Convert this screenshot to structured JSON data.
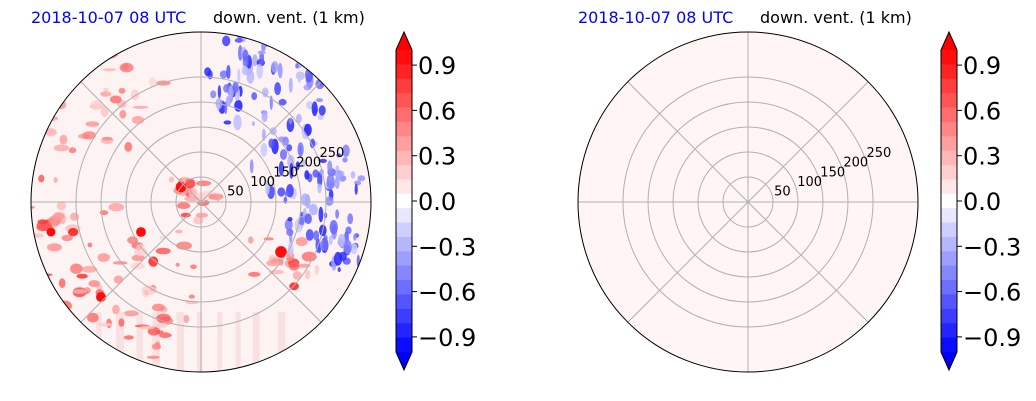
{
  "chart_data": [
    {
      "type": "heatmap",
      "projection": "polar",
      "title_date": "2018-10-07 08 UTC",
      "title": "down. vent. (1 km)",
      "radial_ticks": [
        50,
        100,
        150,
        200,
        250
      ],
      "rmax": 340,
      "angular_gridlines_deg": [
        0,
        45,
        90,
        135,
        180,
        225,
        270,
        315
      ],
      "field_description": "mixed positive (red) and negative (blue) values",
      "colorbar": {
        "ticks": [
          0.9,
          0.6,
          0.3,
          0.0,
          -0.3,
          -0.6,
          -0.9
        ],
        "tick_labels": [
          "0.9",
          "0.6",
          "0.3",
          "0.0",
          "−0.3",
          "−0.6",
          "−0.9"
        ],
        "range": [
          -1.0,
          1.0
        ],
        "extend": "both",
        "cmap": "bwr",
        "levels": 21
      }
    },
    {
      "type": "heatmap",
      "projection": "polar",
      "title_date": "2018-10-07 08 UTC",
      "title": "down. vent. (1 km)",
      "radial_ticks": [
        50,
        100,
        150,
        200,
        250
      ],
      "rmax": 340,
      "angular_gridlines_deg": [
        0,
        45,
        90,
        135,
        180,
        225,
        270,
        315
      ],
      "field_description": "uniform near-zero positive value",
      "uniform_value": 0.04,
      "colorbar": {
        "ticks": [
          0.9,
          0.6,
          0.3,
          0.0,
          -0.3,
          -0.6,
          -0.9
        ],
        "tick_labels": [
          "0.9",
          "0.6",
          "0.3",
          "0.0",
          "−0.3",
          "−0.6",
          "−0.9"
        ],
        "range": [
          -1.0,
          1.0
        ],
        "extend": "both",
        "cmap": "bwr",
        "levels": 21
      }
    }
  ],
  "colors": {
    "title_date": "#0000ff",
    "grid": "#b0b0b0",
    "positive_max": "#ff0000",
    "negative_max": "#0000ff",
    "zero": "#ffffff",
    "uniform_fill": "#fff0f0"
  }
}
